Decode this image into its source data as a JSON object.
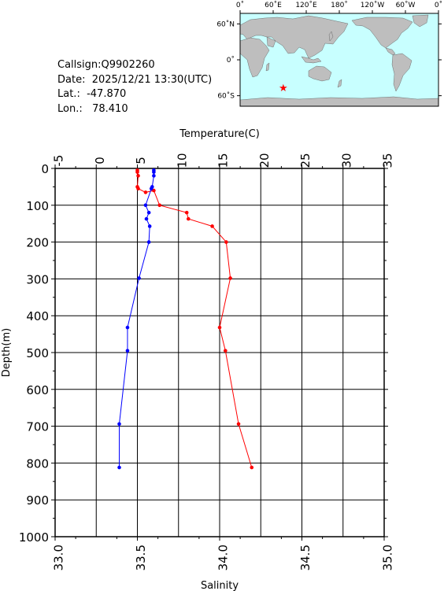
{
  "station": {
    "callsign": "Callsign:Q9902260",
    "date": "Date:  2025/12/21 13:30(UTC)",
    "lat": "Lat.:  -47.870",
    "lon": "Lon.:   78.410"
  },
  "map": {
    "lon_labels": [
      "0˚",
      "60˚E",
      "120˚E",
      "180˚",
      "120˚W",
      "60˚W",
      "0˚"
    ],
    "lat_labels": [
      "60˚N",
      "0˚",
      "60˚S"
    ],
    "marker": {
      "lat": -47.87,
      "lon": 78.41,
      "color": "#ff0000",
      "icon": "star-icon"
    },
    "ocean_color": "#c8ffff",
    "land_color": "#bebebe"
  },
  "chart_data": {
    "type": "line",
    "ylabel": "Depth(m)",
    "ylim": [
      1000,
      0
    ],
    "yticks": [
      "0",
      "100",
      "200",
      "300",
      "400",
      "500",
      "600",
      "700",
      "800",
      "900",
      "1000"
    ],
    "y_values": [
      0,
      100,
      200,
      300,
      400,
      500,
      600,
      700,
      800,
      900,
      1000
    ],
    "grid": true,
    "top_axis": {
      "label": "Temperature(C)",
      "range": [
        -5,
        35
      ],
      "ticks": [
        "-5",
        "0",
        "5",
        "10",
        "15",
        "20",
        "25",
        "30",
        "35"
      ]
    },
    "bottom_axis": {
      "label": "Salinity",
      "range": [
        33.0,
        35.0
      ],
      "ticks": [
        "33.0",
        "33.5",
        "34.0",
        "34.5",
        "35.0"
      ]
    },
    "series": [
      {
        "axis": "top",
        "color": "#ff0000",
        "points": [
          {
            "x": 5.0,
            "y": 5
          },
          {
            "x": 5.0,
            "y": 10
          },
          {
            "x": 5.1,
            "y": 20
          },
          {
            "x": 5.0,
            "y": 50
          },
          {
            "x": 5.1,
            "y": 55
          },
          {
            "x": 6.0,
            "y": 65
          },
          {
            "x": 7.0,
            "y": 60
          },
          {
            "x": 7.7,
            "y": 100
          },
          {
            "x": 11.0,
            "y": 120
          },
          {
            "x": 11.2,
            "y": 137
          },
          {
            "x": 14.1,
            "y": 157
          },
          {
            "x": 15.8,
            "y": 200
          },
          {
            "x": 16.3,
            "y": 298
          },
          {
            "x": 15.0,
            "y": 432
          },
          {
            "x": 15.7,
            "y": 495
          },
          {
            "x": 17.3,
            "y": 694
          },
          {
            "x": 18.9,
            "y": 812
          }
        ]
      },
      {
        "axis": "bottom",
        "color": "#0000ff",
        "points": [
          {
            "x": 33.6,
            "y": 5
          },
          {
            "x": 33.6,
            "y": 10
          },
          {
            "x": 33.6,
            "y": 20
          },
          {
            "x": 33.59,
            "y": 50
          },
          {
            "x": 33.585,
            "y": 55
          },
          {
            "x": 33.55,
            "y": 100
          },
          {
            "x": 33.57,
            "y": 120
          },
          {
            "x": 33.555,
            "y": 137
          },
          {
            "x": 33.575,
            "y": 157
          },
          {
            "x": 33.57,
            "y": 200
          },
          {
            "x": 33.51,
            "y": 298
          },
          {
            "x": 33.44,
            "y": 432
          },
          {
            "x": 33.44,
            "y": 495
          },
          {
            "x": 33.39,
            "y": 694
          },
          {
            "x": 33.39,
            "y": 812
          }
        ]
      }
    ]
  }
}
